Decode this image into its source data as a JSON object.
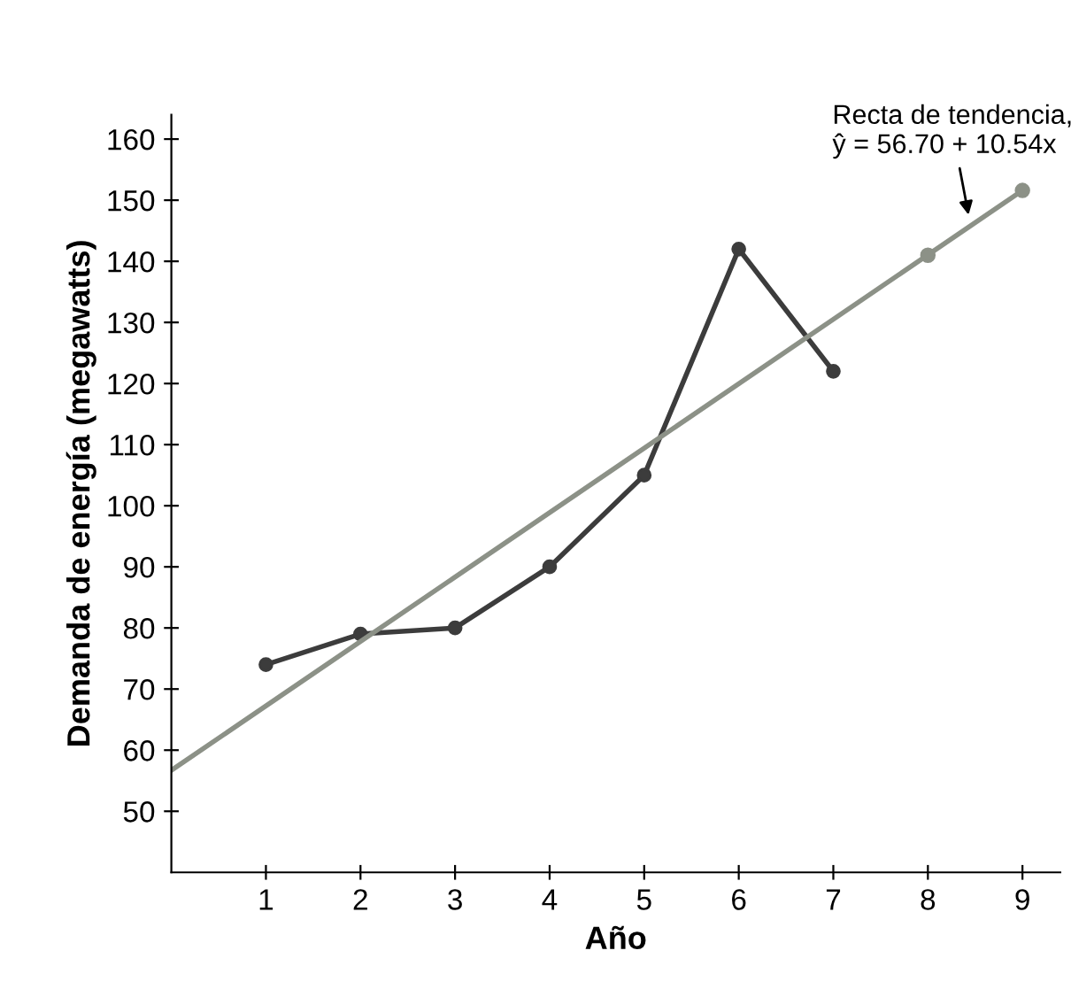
{
  "chart_data": {
    "type": "line",
    "xlabel": "Año",
    "ylabel": "Demanda de energía (megawatts)",
    "xlim": [
      0,
      9.4
    ],
    "ylim": [
      40,
      164
    ],
    "xticks": [
      1,
      2,
      3,
      4,
      5,
      6,
      7,
      8,
      9
    ],
    "yticks": [
      50,
      60,
      70,
      80,
      90,
      100,
      110,
      120,
      130,
      140,
      150,
      160
    ],
    "grid": false,
    "legend": false,
    "series": [
      {
        "color": "#3c3c3c",
        "marker": "circle",
        "x": [
          1,
          2,
          3,
          4,
          5,
          6,
          7
        ],
        "values": [
          74,
          79,
          80,
          90,
          105,
          142,
          122
        ]
      },
      {
        "type": "line",
        "color": "#8c9187",
        "marker": "none",
        "x": [
          0,
          9
        ],
        "values": [
          56.7,
          151.6
        ]
      },
      {
        "type": "scatter",
        "color": "#8c9187",
        "marker": "circle",
        "x": [
          8,
          9
        ],
        "values": [
          141.0,
          151.6
        ]
      }
    ],
    "annotations": [
      {
        "text": "Recta de tendencia,\nŷ = 56.70 + 10.54x",
        "x": 8.44,
        "y": 146.8
      }
    ]
  }
}
